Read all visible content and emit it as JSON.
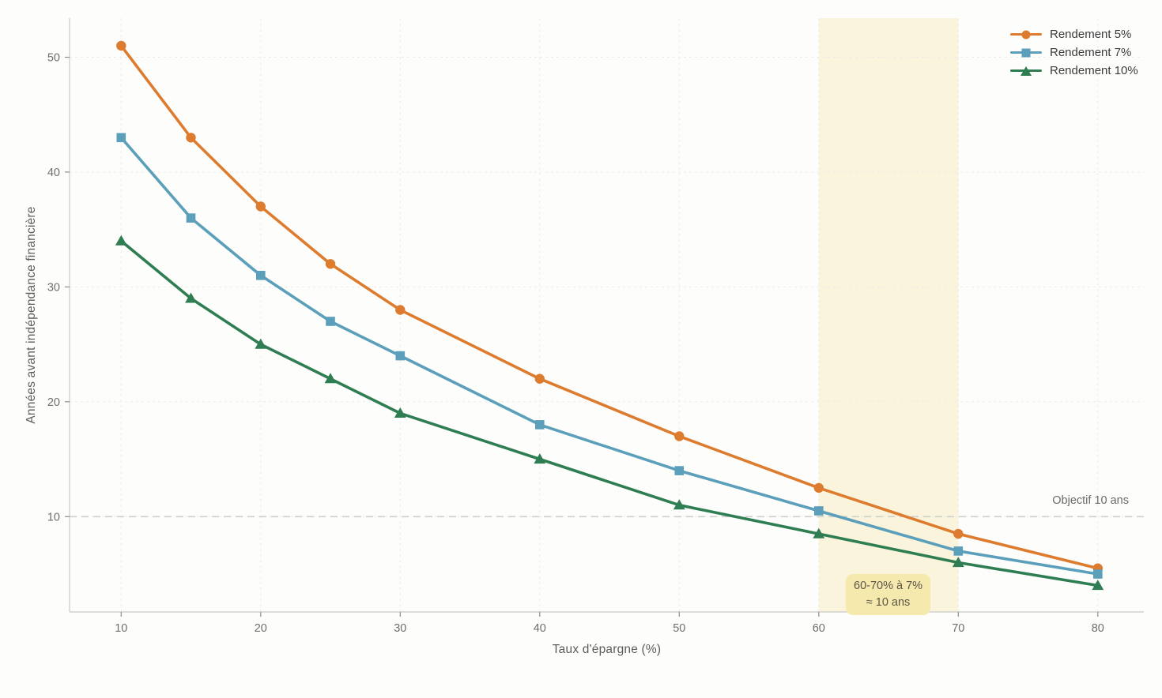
{
  "chart_data": {
    "type": "line",
    "title": "",
    "xlabel": "Taux d'épargne (%)",
    "ylabel": "Années avant indépendance financière",
    "x": [
      10,
      15,
      20,
      25,
      30,
      40,
      50,
      60,
      70,
      80
    ],
    "x_ticks": [
      10,
      20,
      30,
      40,
      50,
      60,
      70,
      80
    ],
    "y_ticks": [
      10,
      20,
      30,
      40,
      50
    ],
    "xlim": [
      6.3,
      83.3
    ],
    "ylim": [
      1.7,
      53.4
    ],
    "grid": true,
    "grid_style": "faint dashed, both axes",
    "legend_position": "top-right",
    "series": [
      {
        "name": "Rendement 5%",
        "marker": "circle",
        "color": "#DD7C2F",
        "values": [
          51,
          43,
          37,
          32,
          28,
          22,
          17,
          12.5,
          8.5,
          5.5
        ]
      },
      {
        "name": "Rendement 7%",
        "marker": "square",
        "color": "#5B9FBA",
        "values": [
          43,
          36,
          31,
          27,
          24,
          18,
          14,
          10.5,
          7,
          5
        ]
      },
      {
        "name": "Rendement 10%",
        "marker": "triangle",
        "color": "#2F7D52",
        "values": [
          34,
          29,
          25,
          22,
          19,
          15,
          11,
          8.5,
          6,
          4
        ]
      }
    ],
    "reference_line": {
      "y": 10,
      "label": "Objectif 10 ans",
      "color": "#CFCFCC"
    },
    "highlight_band": {
      "x_from": 60,
      "x_to": 70,
      "color": "#FAF4DD"
    },
    "annotation": {
      "line1": "60-70% à 7%",
      "line2": "≈ 10 ans",
      "bg": "#F6E9AE",
      "text_color": "#5A5547"
    }
  },
  "palette": {
    "background": "#FDFDFB",
    "gridline": "#EBEBE8",
    "spine": "#C9C9C6",
    "tick_mark": "#8E8E8C",
    "tick_label": "#6E6E6E",
    "axis_title": "#5C5C5C",
    "legend_text": "#3C3C3C"
  }
}
